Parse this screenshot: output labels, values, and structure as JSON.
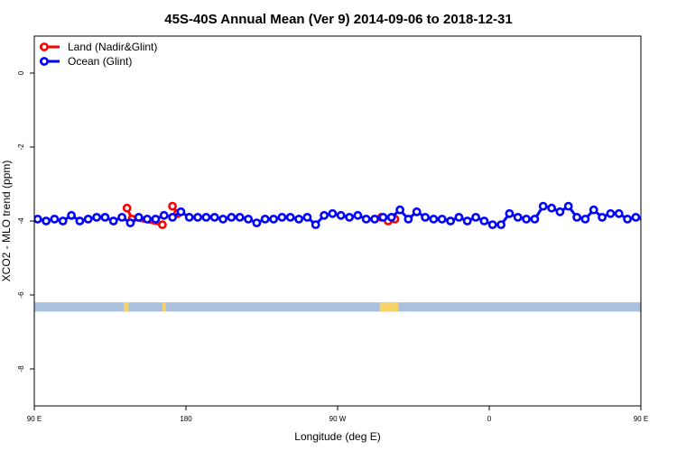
{
  "chart_data": {
    "type": "line",
    "title": "45S-40S Annual Mean (Ver 9)   2014-09-06 to 2018-12-31",
    "xlabel": "Longitude (deg E)",
    "ylabel": "XCO2 - MLO trend (ppm)",
    "xlim": [
      90,
      450
    ],
    "ylim": [
      -9,
      1
    ],
    "x_ticks": [
      {
        "value": 90,
        "label": "90 E"
      },
      {
        "value": 180,
        "label": "180"
      },
      {
        "value": 270,
        "label": "90 W"
      },
      {
        "value": 360,
        "label": "0"
      },
      {
        "value": 450,
        "label": "90 E"
      },
      {
        "value": 540,
        "label": "180"
      }
    ],
    "y_ticks": [
      {
        "value": 0,
        "label": "0"
      },
      {
        "value": -2,
        "label": "-2"
      },
      {
        "value": -4,
        "label": "-4"
      },
      {
        "value": -6,
        "label": "-6"
      },
      {
        "value": -8,
        "label": "-8"
      }
    ],
    "legend_position": "top-left",
    "colors": {
      "land": "#ff0000",
      "ocean": "#0000ff",
      "ocean_band": "#a9c0de",
      "land_band": "#f5d36a"
    },
    "series": [
      {
        "name": "Land (Nadir&Glint)",
        "key": "land",
        "segments": [
          {
            "x": [
              145,
              148,
              166
            ],
            "y": [
              -3.65,
              -3.95,
              -4.1
            ]
          },
          {
            "x": [
              172,
              175
            ],
            "y": [
              -3.6,
              -3.8
            ]
          },
          {
            "x": [
              296,
              300,
              304
            ],
            "y": [
              -3.9,
              -4.0,
              -3.95
            ]
          },
          {
            "x": [
              501,
              505
            ],
            "y": [
              -3.65,
              -3.9
            ]
          },
          {
            "x": [
              525,
              528,
              532
            ],
            "y": [
              -4.15,
              -3.85,
              -3.6
            ]
          }
        ]
      },
      {
        "name": "Ocean (Glint)",
        "key": "ocean",
        "segments": [
          {
            "x": [
              92,
              97,
              102,
              107,
              112,
              117,
              122,
              127,
              132,
              137,
              142,
              147,
              152,
              157,
              162,
              167
            ],
            "y": [
              -3.95,
              -4.0,
              -3.95,
              -4.0,
              -3.85,
              -4.0,
              -3.95,
              -3.9,
              -3.9,
              -4.0,
              -3.9,
              -4.05,
              -3.9,
              -3.95,
              -3.95,
              -3.85
            ]
          },
          {
            "x": [
              172,
              177,
              182,
              187,
              192,
              197,
              202,
              207,
              212,
              217,
              222,
              227,
              232,
              237,
              242,
              247,
              252,
              257,
              262,
              267,
              272,
              277,
              282,
              287,
              292,
              297,
              302,
              307,
              312,
              317,
              322,
              327,
              332,
              337,
              342,
              347,
              352,
              357,
              362,
              367,
              372,
              377,
              382,
              387,
              392,
              397,
              402,
              407,
              412,
              417,
              422,
              427,
              432,
              437,
              442,
              447,
              452,
              457,
              462,
              467,
              472,
              477,
              482,
              487,
              492,
              497,
              502,
              507,
              512,
              517,
              522,
              527,
              532,
              537
            ],
            "y": [
              -3.9,
              -3.75,
              -3.9,
              -3.9,
              -3.9,
              -3.9,
              -3.95,
              -3.9,
              -3.9,
              -3.95,
              -4.05,
              -3.95,
              -3.95,
              -3.9,
              -3.9,
              -3.95,
              -3.9,
              -4.1,
              -3.85,
              -3.8,
              -3.85,
              -3.9,
              -3.85,
              -3.95,
              -3.95,
              -3.9,
              -3.9,
              -3.7,
              -3.95,
              -3.75,
              -3.9,
              -3.95,
              -3.95,
              -4.0,
              -3.9,
              -4.0,
              -3.9,
              -4.0,
              -4.1,
              -4.1,
              -3.8,
              -3.9,
              -3.95,
              -3.95,
              -3.6,
              -3.65,
              -3.75,
              -3.6,
              -3.9,
              -3.95,
              -3.7,
              -3.9,
              -3.8,
              -3.8,
              -3.95,
              -3.9,
              -3.95,
              -4.0,
              -3.95,
              -3.95,
              -3.85,
              -4.0,
              -3.95,
              -3.9,
              -3.9,
              -3.95,
              -3.9,
              -4.05,
              -3.9,
              -3.95,
              -3.95,
              -3.85,
              -3.95,
              -3.75
            ]
          }
        ]
      }
    ],
    "surface_band": {
      "y_range": [
        -6.45,
        -6.2
      ],
      "land_x": [
        [
          143,
          146
        ],
        [
          166,
          168
        ],
        [
          295,
          306
        ],
        [
          501,
          504
        ],
        [
          522,
          525
        ]
      ]
    }
  }
}
